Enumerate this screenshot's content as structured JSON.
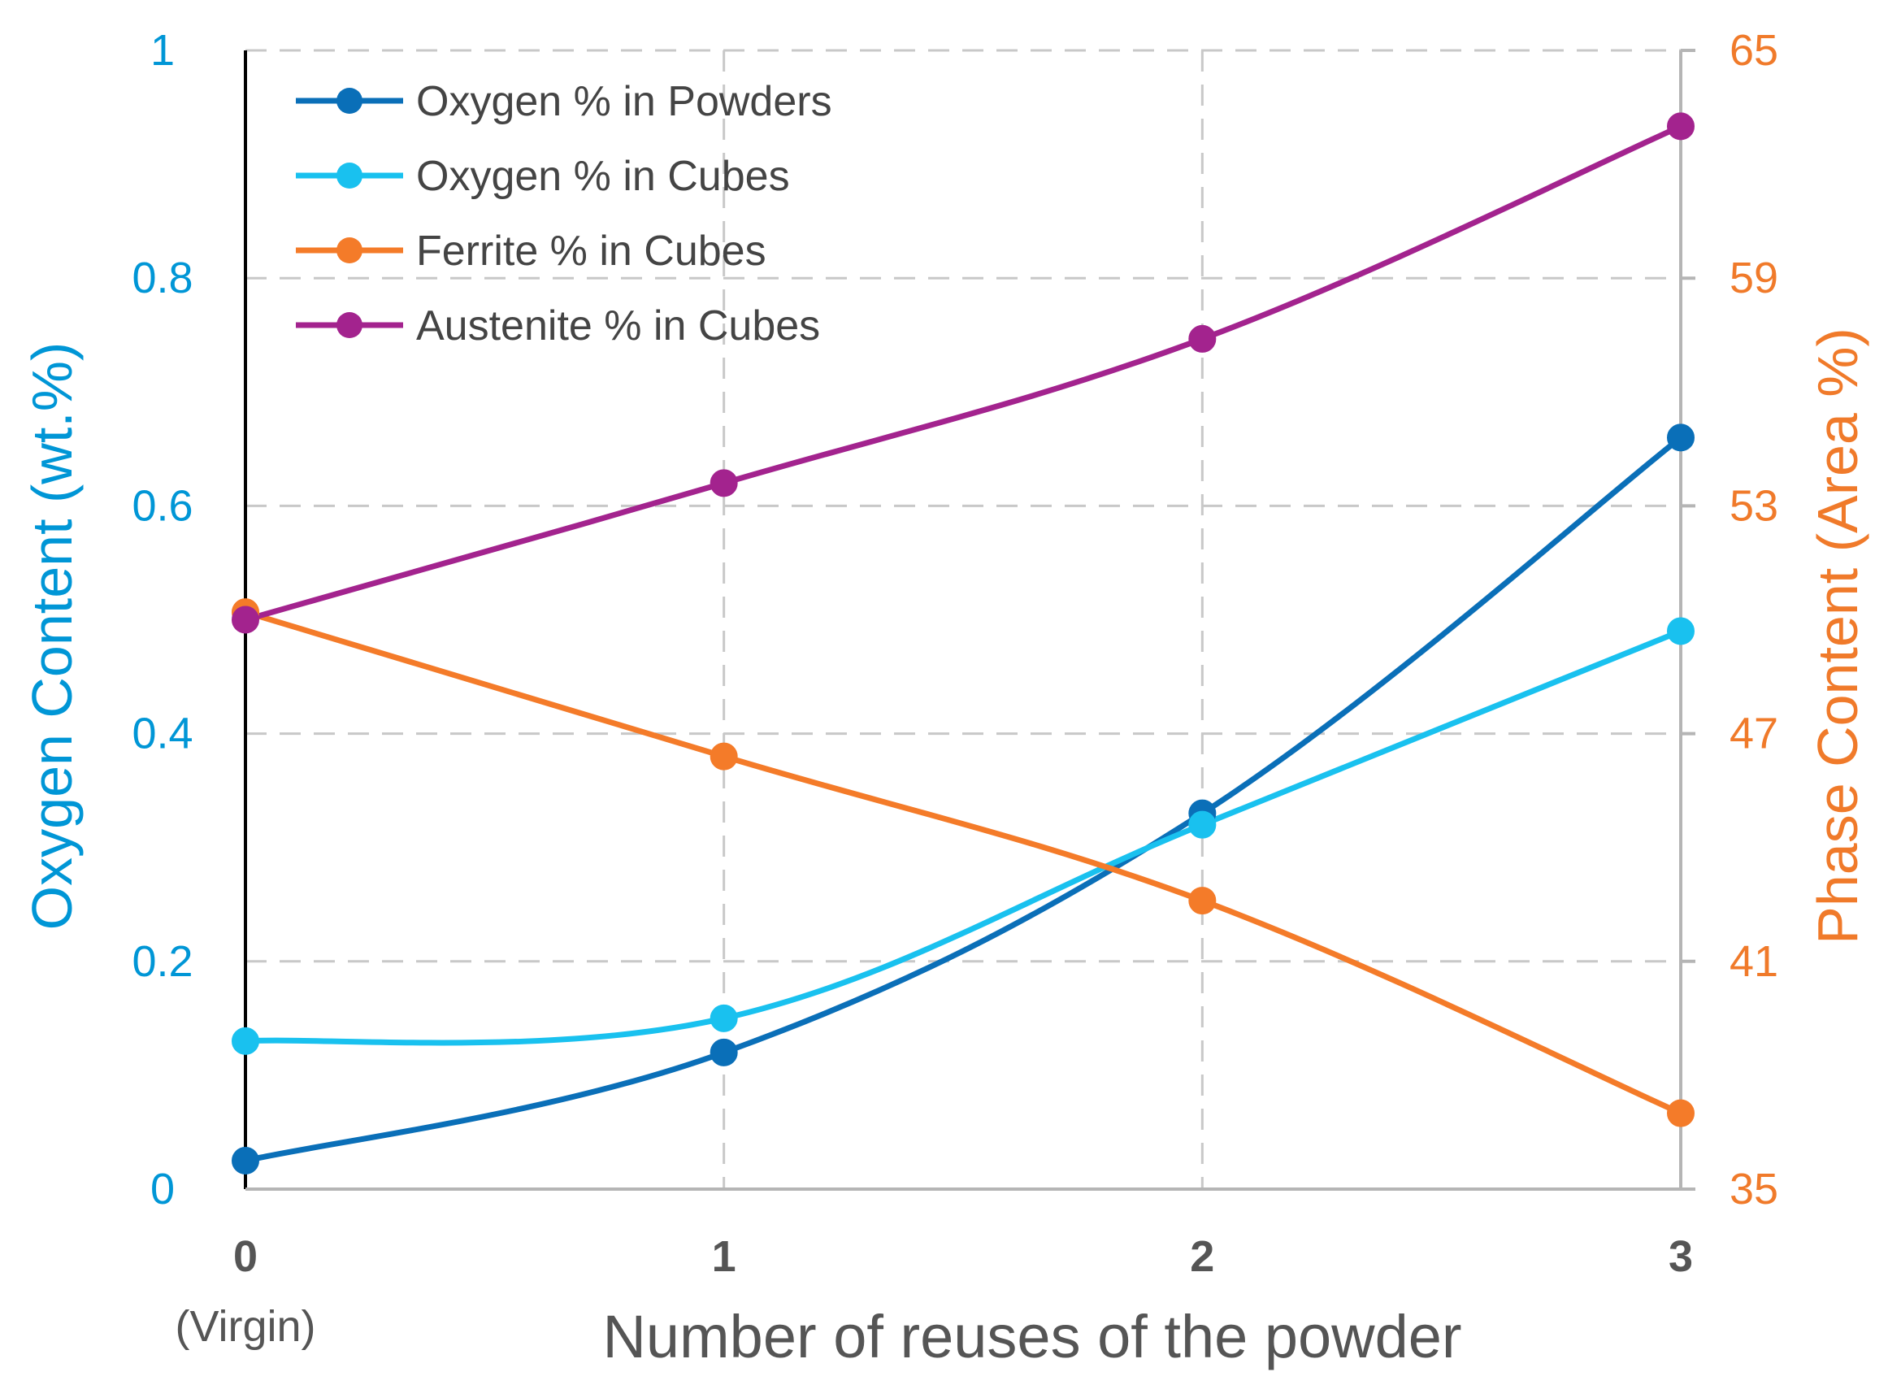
{
  "chart_data": {
    "type": "line",
    "categories": [
      "0",
      "1",
      "2",
      "3"
    ],
    "category_sublabels": [
      "(Virgin)",
      "",
      "",
      ""
    ],
    "x": [
      0,
      1,
      2,
      3
    ],
    "xlabel": "Number of reuses of the powder",
    "ylabel_left": "Oxygen Content (wt.%)",
    "ylabel_right": "Phase Content (Area %)",
    "ylim_left": [
      0,
      1
    ],
    "ylim_right": [
      35,
      65
    ],
    "yticks_left": [
      "0",
      "0.2",
      "0.4",
      "0.6",
      "0.8",
      "1"
    ],
    "yticks_right": [
      "35",
      "41",
      "47",
      "53",
      "59",
      "65"
    ],
    "grid": true,
    "legend_position": "top-left",
    "series": [
      {
        "name": "Oxygen % in Powders",
        "axis": "left",
        "color": "#0a6fb8",
        "values": [
          0.025,
          0.12,
          0.33,
          0.66
        ]
      },
      {
        "name": "Oxygen % in Cubes",
        "axis": "left",
        "color": "#19c1ef",
        "values": [
          0.13,
          0.15,
          0.32,
          0.49
        ]
      },
      {
        "name": "Ferrite % in Cubes",
        "axis": "right",
        "color": "#f47b29",
        "values": [
          50.2,
          46.4,
          42.6,
          37.0
        ]
      },
      {
        "name": "Austenite % in Cubes",
        "axis": "right",
        "color": "#a3238e",
        "values": [
          50.0,
          53.6,
          57.4,
          63.0
        ]
      }
    ]
  }
}
